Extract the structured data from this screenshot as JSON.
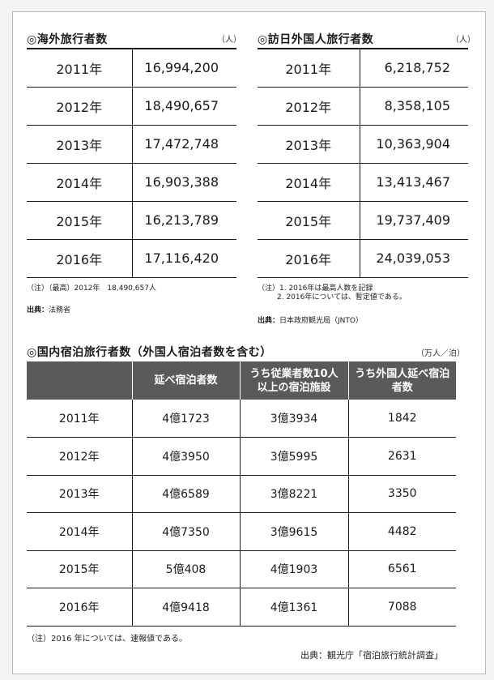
{
  "outbound": {
    "title": "◎海外旅行者数",
    "unit": "（人）",
    "rows": [
      {
        "year": "2011年",
        "value": "16,994,200"
      },
      {
        "year": "2012年",
        "value": "18,490,657"
      },
      {
        "year": "2013年",
        "value": "17,472,748"
      },
      {
        "year": "2014年",
        "value": "16,903,388"
      },
      {
        "year": "2015年",
        "value": "16,213,789"
      },
      {
        "year": "2016年",
        "value": "17,116,420"
      }
    ],
    "note": "（注）（最高）2012年　18,490,657人",
    "source_label": "出典：",
    "source_text": "法務省"
  },
  "inbound": {
    "title": "◎訪日外国人旅行者数",
    "unit": "（人）",
    "rows": [
      {
        "year": "2011年",
        "value": "6,218,752"
      },
      {
        "year": "2012年",
        "value": "8,358,105"
      },
      {
        "year": "2013年",
        "value": "10,363,904"
      },
      {
        "year": "2014年",
        "value": "13,413,467"
      },
      {
        "year": "2015年",
        "value": "19,737,409"
      },
      {
        "year": "2016年",
        "value": "24,039,053"
      }
    ],
    "note_line1": "（注）1. 2016年は最高人数を記録",
    "note_line2": "2. 2016年については、暫定値である。",
    "source_label": "出典：",
    "source_text": "日本政府観光局（JNTO）"
  },
  "domestic": {
    "title": "◎国内宿泊旅行者数（外国人宿泊者数を含む）",
    "unit": "（万人／泊）",
    "headers": [
      "",
      "延べ宿泊者数",
      "うち従業者数10人以上の宿泊施設",
      "うち外国人延べ宿泊者数"
    ],
    "rows": [
      {
        "year": "2011年",
        "total": "4億1723",
        "large": "3億3934",
        "foreign": "1842"
      },
      {
        "year": "2012年",
        "total": "4億3950",
        "large": "3億5995",
        "foreign": "2631"
      },
      {
        "year": "2013年",
        "total": "4億6589",
        "large": "3億8221",
        "foreign": "3350"
      },
      {
        "year": "2014年",
        "total": "4億7350",
        "large": "3億9615",
        "foreign": "4482"
      },
      {
        "year": "2015年",
        "total": "5億408",
        "large": "4億1903",
        "foreign": "6561"
      },
      {
        "year": "2016年",
        "total": "4億9418",
        "large": "4億1361",
        "foreign": "7088"
      }
    ],
    "note": "（注）2016 年については、速報値である。",
    "source": "出典：観光庁「宿泊旅行統計調査」"
  }
}
